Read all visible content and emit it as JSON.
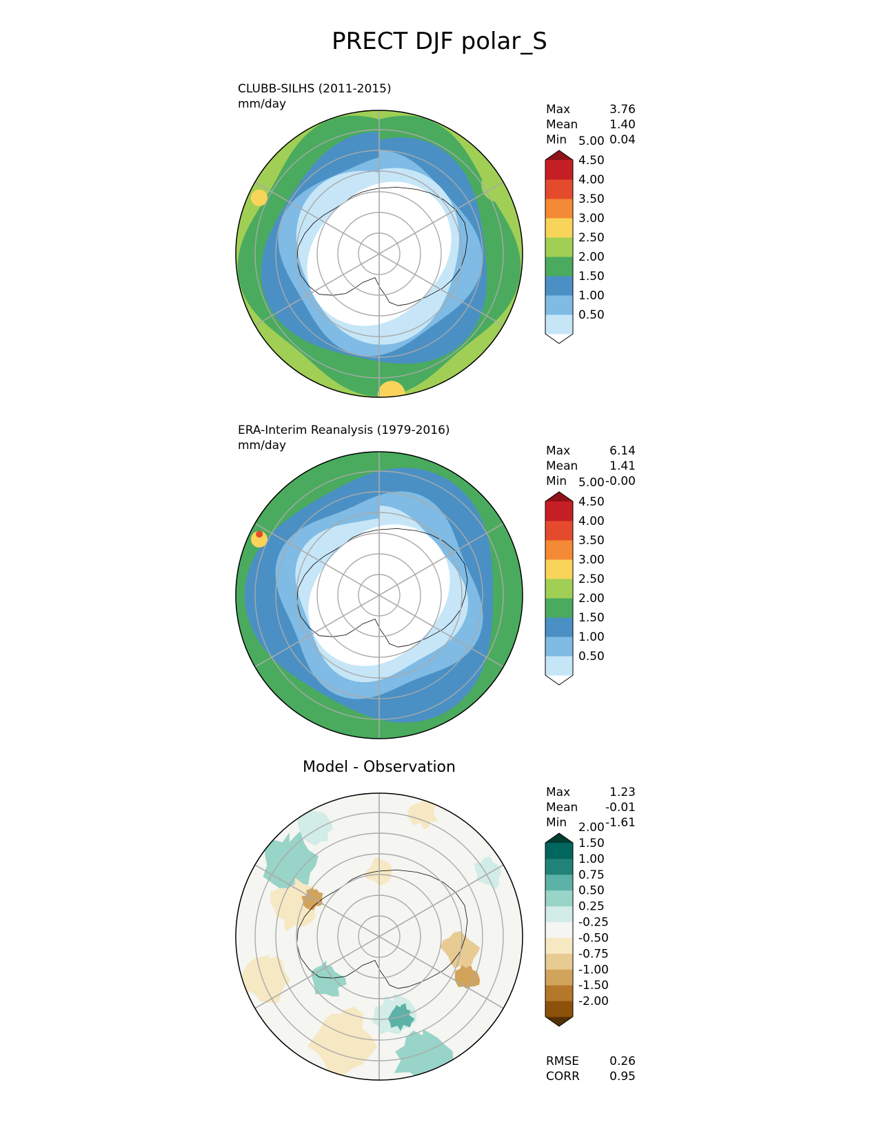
{
  "title": "PRECT DJF polar_S",
  "panels": [
    {
      "name": "CLUBB-SILHS (2011-2015)",
      "unit": "mm/day",
      "stats": {
        "max_label": "Max",
        "max": "3.76",
        "mean_label": "Mean",
        "mean": "1.40",
        "min_label": "Min",
        "min": "0.04"
      },
      "colorbar": {
        "levels": [
          "0.50",
          "1.00",
          "1.50",
          "2.00",
          "2.50",
          "3.00",
          "3.50",
          "4.00",
          "4.50",
          "5.00"
        ],
        "colors": [
          "#ffffff",
          "#c6e6f8",
          "#7fbbe4",
          "#4a90c4",
          "#4aab5e",
          "#a1cf56",
          "#f8d55a",
          "#f58a36",
          "#e44a2c",
          "#c51e24",
          "#8d1318"
        ]
      }
    },
    {
      "name": "ERA-Interim Reanalysis (1979-2016)",
      "unit": "mm/day",
      "stats": {
        "max_label": "Max",
        "max": "6.14",
        "mean_label": "Mean",
        "mean": "1.41",
        "min_label": "Min",
        "min": "-0.00"
      },
      "colorbar": {
        "levels": [
          "0.50",
          "1.00",
          "1.50",
          "2.00",
          "2.50",
          "3.00",
          "3.50",
          "4.00",
          "4.50",
          "5.00"
        ],
        "colors": [
          "#ffffff",
          "#c6e6f8",
          "#7fbbe4",
          "#4a90c4",
          "#4aab5e",
          "#a1cf56",
          "#f8d55a",
          "#f58a36",
          "#e44a2c",
          "#c51e24",
          "#8d1318"
        ]
      }
    },
    {
      "name": "Model - Observation",
      "stats": {
        "max_label": "Max",
        "max": "1.23",
        "mean_label": "Mean",
        "mean": "-0.01",
        "min_label": "Min",
        "min": "-1.61"
      },
      "colorbar": {
        "levels": [
          "-2.00",
          "-1.50",
          "-1.00",
          "-0.75",
          "-0.50",
          "-0.25",
          "0.25",
          "0.50",
          "0.75",
          "1.00",
          "1.50",
          "2.00"
        ],
        "colors": [
          "#543005",
          "#8c510a",
          "#b5772a",
          "#d2a35a",
          "#e8cb93",
          "#f6e8c3",
          "#f5f5f2",
          "#d2ece7",
          "#98d4c8",
          "#5cb2a6",
          "#218377",
          "#01665e",
          "#003c30"
        ]
      },
      "metrics": {
        "rmse_label": "RMSE",
        "rmse": "0.26",
        "corr_label": "CORR",
        "corr": "0.95"
      }
    }
  ]
}
